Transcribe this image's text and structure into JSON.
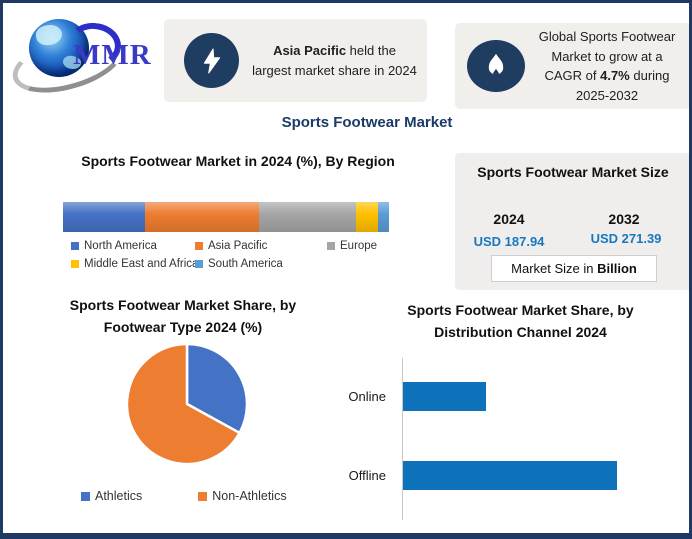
{
  "theme": {
    "border_navy": "#1f3864",
    "badge_navy": "#1f3c61",
    "title_blue": "#1b3a66",
    "panel_gray": "#f1efec",
    "value_blue": "#1878be"
  },
  "brand": {
    "logo_text": "MMR"
  },
  "header": {
    "callout_region": {
      "bold": "Asia Pacific",
      "rest": " held the largest market share in 2024"
    },
    "callout_cagr": {
      "pre": "Global Sports Footwear Market to grow at a CAGR of ",
      "bold": "4.7%",
      "post": " during 2025-2032"
    }
  },
  "main_title": "Sports Footwear Market",
  "market_size_panel": {
    "title": "Sports Footwear Market Size",
    "col_2024": {
      "year": "2024",
      "value": "USD 187.94"
    },
    "col_2032": {
      "year": "2032",
      "value": "USD 271.39"
    },
    "note_regular": "Market Size in ",
    "note_bold": "Billion",
    "value_color": "#1878be"
  },
  "chart_data": [
    {
      "id": "region_share",
      "type": "bar",
      "subtype": "stacked-horizontal",
      "title": "Sports Footwear Market in 2024 (%), By Region",
      "unit": "%",
      "legend_position": "bottom",
      "series": [
        {
          "name": "North America",
          "value": 25,
          "color": "#4472C4"
        },
        {
          "name": "Asia Pacific",
          "value": 35,
          "color": "#ED7D31"
        },
        {
          "name": "Europe",
          "value": 30,
          "color": "#A5A5A5"
        },
        {
          "name": "Middle East and Africa",
          "value": 6.5,
          "color": "#FFC000"
        },
        {
          "name": "South America",
          "value": 3.5,
          "color": "#5B9BD5"
        }
      ]
    },
    {
      "id": "footwear_type",
      "type": "pie",
      "title": "Sports Footwear Market Share, by Footwear Type 2024 (%)",
      "title_line1": "Sports Footwear Market Share, by",
      "title_line2": "Footwear Type 2024 (%)",
      "start_angle_deg": 0,
      "legend_position": "bottom",
      "slices": [
        {
          "name": "Athletics",
          "value": 33,
          "color": "#4472C4"
        },
        {
          "name": "Non-Athletics",
          "value": 67,
          "color": "#ED7D31"
        }
      ]
    },
    {
      "id": "distribution_channel",
      "type": "bar",
      "subtype": "horizontal",
      "title": "Sports Footwear Market Share, by Distribution Channel 2024",
      "title_line1": "Sports Footwear Market Share, by",
      "title_line2": "Distribution Channel 2024",
      "categories": [
        "Online",
        "Offline"
      ],
      "values": [
        28,
        72
      ],
      "unit": "%",
      "bar_color": "#0d72b9",
      "axis_color": "#c9c9c9"
    }
  ]
}
